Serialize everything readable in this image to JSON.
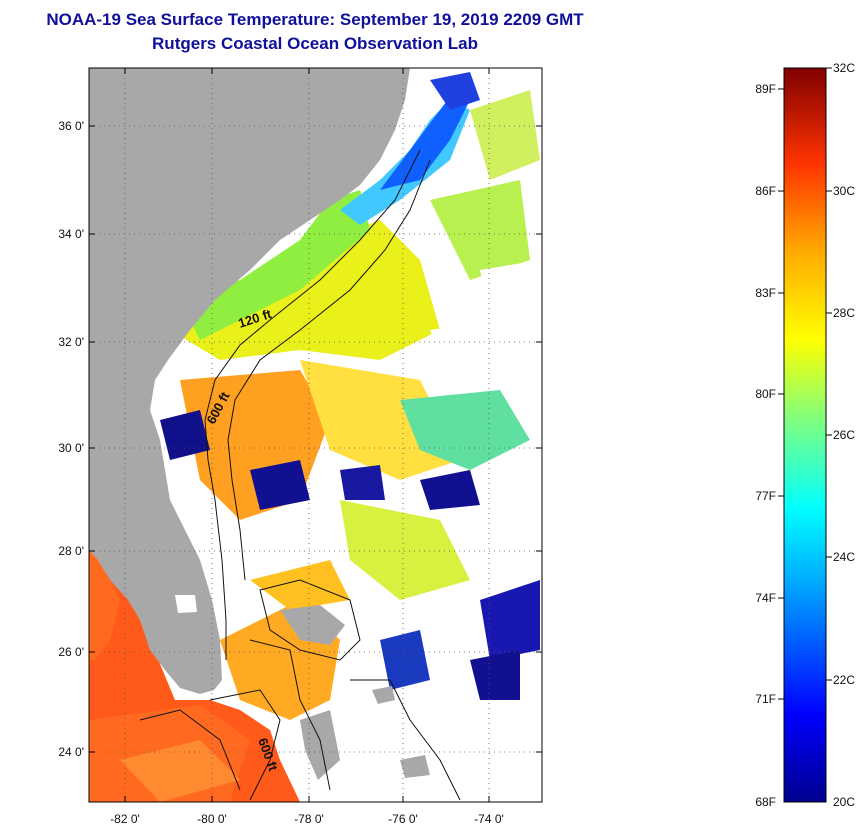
{
  "title_line1": "NOAA-19 Sea Surface Temperature:  September 19, 2019 2209 GMT",
  "title_line2": "Rutgers Coastal Ocean Observation Lab",
  "lat_labels": [
    "36 0'",
    "34 0'",
    "32 0'",
    "30 0'",
    "28 0'",
    "26 0'",
    "24 0'"
  ],
  "lon_labels": [
    "-82 0'",
    "-80 0'",
    "-78 0'",
    "-76 0'",
    "-74 0'"
  ],
  "contour_labels": [
    "120 ft",
    "600 ft",
    "600 ft"
  ],
  "colorbar": {
    "celsius": [
      "32C",
      "30C",
      "28C",
      "26C",
      "24C",
      "22C",
      "20C"
    ],
    "fahrenheit": [
      "89F",
      "86F",
      "83F",
      "80F",
      "77F",
      "74F",
      "71F",
      "68F"
    ],
    "min_c": 20,
    "max_c": 32
  }
}
